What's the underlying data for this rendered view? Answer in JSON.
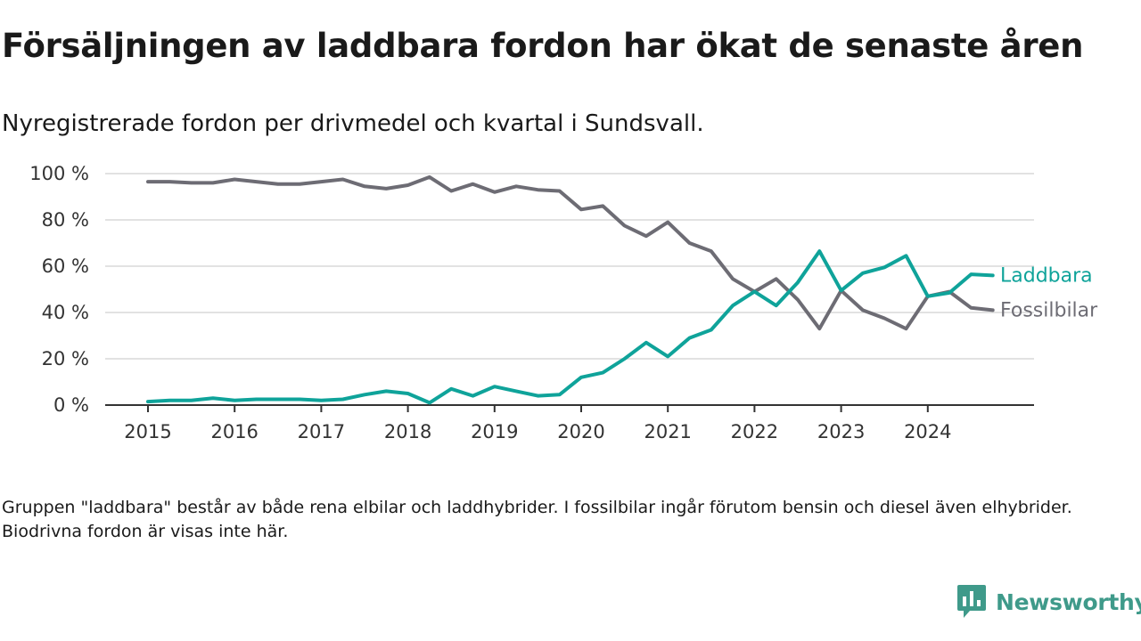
{
  "header": {
    "title": "Försäljningen av laddbara fordon har ökat de senaste åren",
    "subtitle": "Nyregistrerade fordon per drivmedel och kvartal i Sundsvall."
  },
  "chart_data": {
    "type": "line",
    "title": "Försäljningen av laddbara fordon har ökat de senaste åren",
    "subtitle": "Nyregistrerade fordon per drivmedel och kvartal i Sundsvall.",
    "xlabel": "",
    "ylabel": "",
    "x": [
      "2015 Q1",
      "2015 Q2",
      "2015 Q3",
      "2015 Q4",
      "2016 Q1",
      "2016 Q2",
      "2016 Q3",
      "2016 Q4",
      "2017 Q1",
      "2017 Q2",
      "2017 Q3",
      "2017 Q4",
      "2018 Q1",
      "2018 Q2",
      "2018 Q3",
      "2018 Q4",
      "2019 Q1",
      "2019 Q2",
      "2019 Q3",
      "2019 Q4",
      "2020 Q1",
      "2020 Q2",
      "2020 Q3",
      "2020 Q4",
      "2021 Q1",
      "2021 Q2",
      "2021 Q3",
      "2021 Q4",
      "2022 Q1",
      "2022 Q2",
      "2022 Q3",
      "2022 Q4",
      "2023 Q1",
      "2023 Q2",
      "2023 Q3",
      "2023 Q4",
      "2024 Q1",
      "2024 Q2",
      "2024 Q3",
      "2024 Q4"
    ],
    "xticks": [
      "2015",
      "2016",
      "2017",
      "2018",
      "2019",
      "2020",
      "2021",
      "2022",
      "2023",
      "2024"
    ],
    "yticks": [
      "0 %",
      "20 %",
      "40 %",
      "60 %",
      "80 %",
      "100 %"
    ],
    "ylim": [
      0,
      100
    ],
    "grid": true,
    "series": [
      {
        "name": "Laddbara",
        "color": "#0fa39a",
        "values": [
          1.5,
          2,
          2,
          3,
          2,
          2.5,
          2.5,
          2.5,
          2,
          2.5,
          4.5,
          6,
          5,
          1,
          7,
          4,
          8,
          6,
          4,
          4.5,
          12,
          14,
          20,
          27,
          21,
          29,
          32.5,
          43,
          49,
          43,
          53,
          66.5,
          49.5,
          57,
          59.5,
          64.5,
          47,
          48.5,
          56.5,
          56
        ]
      },
      {
        "name": "Fossilbilar",
        "color": "#6d6c74",
        "values": [
          96.5,
          96.5,
          96,
          96,
          97.5,
          96.5,
          95.5,
          95.5,
          96.5,
          97.5,
          94.5,
          93.5,
          95,
          98.5,
          92.5,
          95.5,
          92,
          94.5,
          93,
          92.5,
          84.5,
          86,
          77.5,
          73,
          79,
          70,
          66.5,
          54.5,
          49,
          54.5,
          45.5,
          33,
          49.5,
          41,
          37.5,
          33,
          47,
          49,
          42,
          41
        ]
      }
    ],
    "legend": "line-end labels on the right"
  },
  "footnote": "Gruppen \"laddbara\" består av både rena elbilar och laddhybrider. I fossilbilar ingår förutom bensin och diesel även elhybrider. Biodrivna fordon är visas inte här.",
  "brand": {
    "name": "Newsworthy",
    "logo_icon": "newsworthy-logo-icon",
    "color": "#3f9a8a"
  }
}
